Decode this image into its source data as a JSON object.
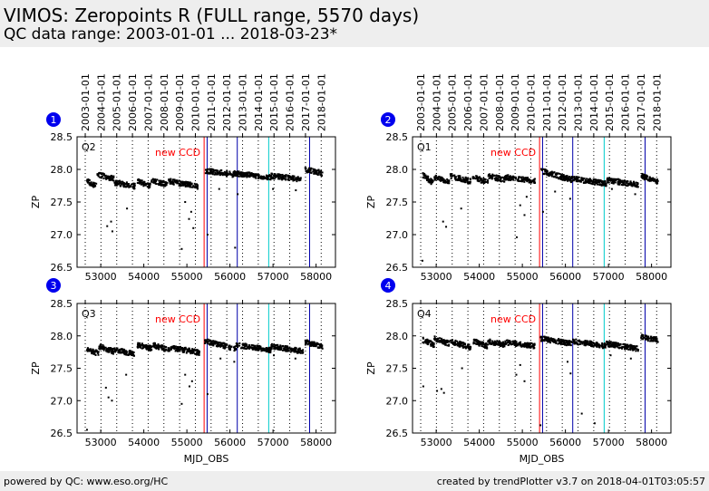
{
  "header": {
    "title": "VIMOS: Zeropoints R (FULL range, 5570 days)",
    "subtitle": "QC data range: 2003-01-01 ... 2018-03-23*"
  },
  "footer": {
    "left": "powered by QC: www.eso.org/HC",
    "right": "created by trendPlotter v3.7 on 2018-04-01T03:05:57"
  },
  "colors": {
    "background": "#ffffff",
    "header_bg": "#eeeeee",
    "marker": "#000000",
    "badge": "#0000ee",
    "line_red": "#ff0000",
    "line_blue": "#0000aa",
    "line_cyan": "#00cccc",
    "annotation": "#ff0000"
  },
  "chart_data": [
    {
      "type": "scatter",
      "badge": "1",
      "panel_label": "Q2",
      "annotation": "new CCD",
      "xlabel": "",
      "ylabel": "ZP",
      "xlim": [
        52450,
        58450
      ],
      "ylim": [
        26.5,
        28.5
      ],
      "xticks": [
        53000,
        54000,
        55000,
        56000,
        57000,
        58000
      ],
      "yticks": [
        26.5,
        27.0,
        27.5,
        28.0,
        28.5
      ],
      "top_ticks": [
        "2003-01-01",
        "2004-01-01",
        "2005-01-01",
        "2006-01-01",
        "2007-01-01",
        "2008-01-01",
        "2009-01-01",
        "2010-01-01",
        "2011-01-01",
        "2012-01-01",
        "2013-01-01",
        "2014-01-01",
        "2015-01-01",
        "2016-01-01",
        "2017-01-01",
        "2018-01-01"
      ],
      "top_tick_mjd": [
        52640,
        53005,
        53371,
        53736,
        54101,
        54466,
        54832,
        55197,
        55562,
        55927,
        56293,
        56658,
        57023,
        57388,
        57754,
        58119
      ],
      "vlines": [
        {
          "mjd": 55400,
          "color": "red"
        },
        {
          "mjd": 55470,
          "color": "blue"
        },
        {
          "mjd": 56170,
          "color": "blue"
        },
        {
          "mjd": 56900,
          "color": "cyan"
        },
        {
          "mjd": 57850,
          "color": "blue"
        }
      ],
      "segments": [
        {
          "x": [
            52680,
            52900
          ],
          "y": [
            27.82,
            27.74
          ]
        },
        {
          "x": [
            52920,
            53300
          ],
          "y": [
            27.92,
            27.86
          ]
        },
        {
          "x": [
            53320,
            53800
          ],
          "y": [
            27.8,
            27.74
          ]
        },
        {
          "x": [
            53850,
            54150
          ],
          "y": [
            27.82,
            27.74
          ]
        },
        {
          "x": [
            54180,
            54550
          ],
          "y": [
            27.82,
            27.77
          ]
        },
        {
          "x": [
            54580,
            55250
          ],
          "y": [
            27.82,
            27.74
          ]
        },
        {
          "x": [
            55430,
            56100
          ],
          "y": [
            27.98,
            27.92
          ]
        },
        {
          "x": [
            56100,
            56950
          ],
          "y": [
            27.94,
            27.88
          ]
        },
        {
          "x": [
            56950,
            57650
          ],
          "y": [
            27.9,
            27.85
          ]
        },
        {
          "x": [
            57750,
            58150
          ],
          "y": [
            28.0,
            27.94
          ]
        }
      ],
      "outliers": [
        {
          "x": 53150,
          "y": 27.13
        },
        {
          "x": 53240,
          "y": 27.2
        },
        {
          "x": 53270,
          "y": 27.05
        },
        {
          "x": 53610,
          "y": 27.4
        },
        {
          "x": 54880,
          "y": 26.78
        },
        {
          "x": 54960,
          "y": 27.5
        },
        {
          "x": 55050,
          "y": 27.24
        },
        {
          "x": 55100,
          "y": 27.35
        },
        {
          "x": 55150,
          "y": 27.1
        },
        {
          "x": 55480,
          "y": 27.0
        },
        {
          "x": 55750,
          "y": 27.7
        },
        {
          "x": 56120,
          "y": 26.8
        },
        {
          "x": 56180,
          "y": 27.62
        },
        {
          "x": 57000,
          "y": 27.7
        },
        {
          "x": 57530,
          "y": 27.68
        }
      ]
    },
    {
      "type": "scatter",
      "badge": "2",
      "panel_label": "Q1",
      "annotation": "new CCD",
      "xlabel": "",
      "ylabel": "ZP",
      "xlim": [
        52450,
        58450
      ],
      "ylim": [
        26.5,
        28.5
      ],
      "xticks": [
        53000,
        54000,
        55000,
        56000,
        57000,
        58000
      ],
      "yticks": [
        26.5,
        27.0,
        27.5,
        28.0,
        28.5
      ],
      "top_ticks": [
        "2003-01-01",
        "2004-01-01",
        "2005-01-01",
        "2006-01-01",
        "2007-01-01",
        "2008-01-01",
        "2009-01-01",
        "2010-01-01",
        "2011-01-01",
        "2012-01-01",
        "2013-01-01",
        "2014-01-01",
        "2015-01-01",
        "2016-01-01",
        "2017-01-01",
        "2018-01-01"
      ],
      "top_tick_mjd": [
        52640,
        53005,
        53371,
        53736,
        54101,
        54466,
        54832,
        55197,
        55562,
        55927,
        56293,
        56658,
        57023,
        57388,
        57754,
        58119
      ],
      "vlines": [
        {
          "mjd": 55400,
          "color": "red"
        },
        {
          "mjd": 55470,
          "color": "blue"
        },
        {
          "mjd": 56170,
          "color": "blue"
        },
        {
          "mjd": 56900,
          "color": "cyan"
        },
        {
          "mjd": 57850,
          "color": "blue"
        }
      ],
      "segments": [
        {
          "x": [
            52680,
            52950
          ],
          "y": [
            27.92,
            27.78
          ]
        },
        {
          "x": [
            52950,
            53300
          ],
          "y": [
            27.88,
            27.8
          ]
        },
        {
          "x": [
            53320,
            53800
          ],
          "y": [
            27.9,
            27.82
          ]
        },
        {
          "x": [
            53850,
            54200
          ],
          "y": [
            27.88,
            27.8
          ]
        },
        {
          "x": [
            54200,
            54600
          ],
          "y": [
            27.9,
            27.84
          ]
        },
        {
          "x": [
            54600,
            55300
          ],
          "y": [
            27.88,
            27.82
          ]
        },
        {
          "x": [
            55420,
            56150
          ],
          "y": [
            27.98,
            27.84
          ]
        },
        {
          "x": [
            56150,
            56950
          ],
          "y": [
            27.86,
            27.78
          ]
        },
        {
          "x": [
            56950,
            57700
          ],
          "y": [
            27.84,
            27.76
          ]
        },
        {
          "x": [
            57750,
            58150
          ],
          "y": [
            27.9,
            27.82
          ]
        }
      ],
      "outliers": [
        {
          "x": 52680,
          "y": 26.6
        },
        {
          "x": 53160,
          "y": 27.2
        },
        {
          "x": 53230,
          "y": 27.12
        },
        {
          "x": 53580,
          "y": 27.4
        },
        {
          "x": 54870,
          "y": 26.96
        },
        {
          "x": 54950,
          "y": 27.45
        },
        {
          "x": 55050,
          "y": 27.3
        },
        {
          "x": 55100,
          "y": 27.58
        },
        {
          "x": 55480,
          "y": 27.35
        },
        {
          "x": 55760,
          "y": 27.66
        },
        {
          "x": 56110,
          "y": 27.55
        },
        {
          "x": 57080,
          "y": 27.7
        },
        {
          "x": 57620,
          "y": 27.62
        }
      ]
    },
    {
      "type": "scatter",
      "badge": "3",
      "panel_label": "Q3",
      "annotation": "new CCD",
      "xlabel": "MJD_OBS",
      "ylabel": "ZP",
      "xlim": [
        52450,
        58450
      ],
      "ylim": [
        26.5,
        28.5
      ],
      "xticks": [
        53000,
        54000,
        55000,
        56000,
        57000,
        58000
      ],
      "yticks": [
        26.5,
        27.0,
        27.5,
        28.0,
        28.5
      ],
      "top_ticks": [],
      "top_tick_mjd": [
        52640,
        53005,
        53371,
        53736,
        54101,
        54466,
        54832,
        55197,
        55562,
        55927,
        56293,
        56658,
        57023,
        57388,
        57754,
        58119
      ],
      "vlines": [
        {
          "mjd": 55400,
          "color": "red"
        },
        {
          "mjd": 55470,
          "color": "blue"
        },
        {
          "mjd": 56170,
          "color": "blue"
        },
        {
          "mjd": 56900,
          "color": "cyan"
        },
        {
          "mjd": 57850,
          "color": "blue"
        }
      ],
      "segments": [
        {
          "x": [
            52680,
            52950
          ],
          "y": [
            27.8,
            27.72
          ]
        },
        {
          "x": [
            52950,
            53300
          ],
          "y": [
            27.84,
            27.76
          ]
        },
        {
          "x": [
            53320,
            53800
          ],
          "y": [
            27.78,
            27.72
          ]
        },
        {
          "x": [
            53850,
            54200
          ],
          "y": [
            27.86,
            27.8
          ]
        },
        {
          "x": [
            54200,
            54600
          ],
          "y": [
            27.86,
            27.78
          ]
        },
        {
          "x": [
            54600,
            55300
          ],
          "y": [
            27.82,
            27.74
          ]
        },
        {
          "x": [
            55420,
            56150
          ],
          "y": [
            27.92,
            27.8
          ]
        },
        {
          "x": [
            56150,
            56950
          ],
          "y": [
            27.86,
            27.78
          ]
        },
        {
          "x": [
            56950,
            57700
          ],
          "y": [
            27.84,
            27.76
          ]
        },
        {
          "x": [
            57750,
            58150
          ],
          "y": [
            27.9,
            27.84
          ]
        }
      ],
      "outliers": [
        {
          "x": 52680,
          "y": 26.55
        },
        {
          "x": 53120,
          "y": 27.2
        },
        {
          "x": 53180,
          "y": 27.05
        },
        {
          "x": 53260,
          "y": 27.0
        },
        {
          "x": 53590,
          "y": 27.4
        },
        {
          "x": 54880,
          "y": 26.95
        },
        {
          "x": 54960,
          "y": 27.4
        },
        {
          "x": 55060,
          "y": 27.22
        },
        {
          "x": 55120,
          "y": 27.3
        },
        {
          "x": 55480,
          "y": 27.1
        },
        {
          "x": 55780,
          "y": 27.65
        },
        {
          "x": 56100,
          "y": 27.6
        },
        {
          "x": 57020,
          "y": 27.7
        },
        {
          "x": 57520,
          "y": 27.65
        }
      ]
    },
    {
      "type": "scatter",
      "badge": "4",
      "panel_label": "Q4",
      "annotation": "new CCD",
      "xlabel": "MJD_OBS",
      "ylabel": "ZP",
      "xlim": [
        52450,
        58450
      ],
      "ylim": [
        26.5,
        28.5
      ],
      "xticks": [
        53000,
        54000,
        55000,
        56000,
        57000,
        58000
      ],
      "yticks": [
        26.5,
        27.0,
        27.5,
        28.0,
        28.5
      ],
      "top_ticks": [],
      "top_tick_mjd": [
        52640,
        53005,
        53371,
        53736,
        54101,
        54466,
        54832,
        55197,
        55562,
        55927,
        56293,
        56658,
        57023,
        57388,
        57754,
        58119
      ],
      "vlines": [
        {
          "mjd": 55400,
          "color": "red"
        },
        {
          "mjd": 55470,
          "color": "blue"
        },
        {
          "mjd": 56170,
          "color": "blue"
        },
        {
          "mjd": 56900,
          "color": "cyan"
        },
        {
          "mjd": 57850,
          "color": "blue"
        }
      ],
      "segments": [
        {
          "x": [
            52680,
            52950
          ],
          "y": [
            27.94,
            27.86
          ]
        },
        {
          "x": [
            52950,
            53300
          ],
          "y": [
            27.96,
            27.88
          ]
        },
        {
          "x": [
            53320,
            53800
          ],
          "y": [
            27.92,
            27.82
          ]
        },
        {
          "x": [
            53850,
            54200
          ],
          "y": [
            27.92,
            27.84
          ]
        },
        {
          "x": [
            54200,
            54600
          ],
          "y": [
            27.92,
            27.86
          ]
        },
        {
          "x": [
            54600,
            55300
          ],
          "y": [
            27.9,
            27.84
          ]
        },
        {
          "x": [
            55420,
            56150
          ],
          "y": [
            27.96,
            27.88
          ]
        },
        {
          "x": [
            56150,
            56950
          ],
          "y": [
            27.92,
            27.84
          ]
        },
        {
          "x": [
            56950,
            57700
          ],
          "y": [
            27.88,
            27.8
          ]
        },
        {
          "x": [
            57750,
            58150
          ],
          "y": [
            27.98,
            27.94
          ]
        }
      ],
      "outliers": [
        {
          "x": 52700,
          "y": 27.22
        },
        {
          "x": 53020,
          "y": 27.15
        },
        {
          "x": 53120,
          "y": 27.18
        },
        {
          "x": 53180,
          "y": 27.12
        },
        {
          "x": 53600,
          "y": 27.5
        },
        {
          "x": 54860,
          "y": 27.4
        },
        {
          "x": 54950,
          "y": 27.55
        },
        {
          "x": 55050,
          "y": 27.3
        },
        {
          "x": 55420,
          "y": 26.62
        },
        {
          "x": 56050,
          "y": 27.6
        },
        {
          "x": 56120,
          "y": 27.42
        },
        {
          "x": 56380,
          "y": 26.8
        },
        {
          "x": 56680,
          "y": 26.65
        },
        {
          "x": 57050,
          "y": 27.7
        },
        {
          "x": 57520,
          "y": 27.65
        }
      ]
    }
  ]
}
